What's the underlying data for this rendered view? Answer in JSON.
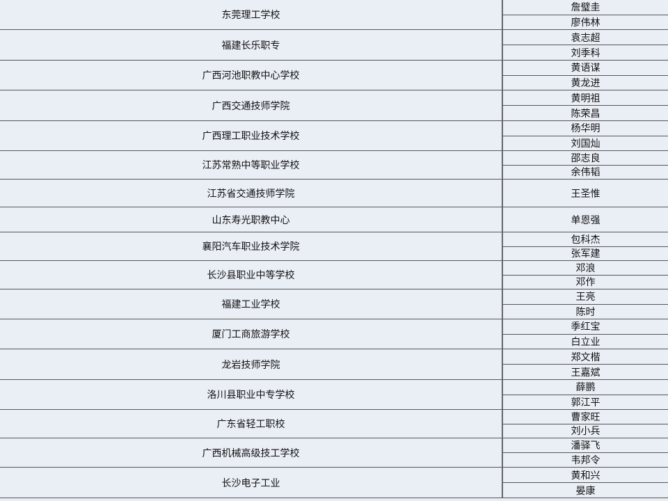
{
  "rows": [
    {
      "school": "东莞理工学校",
      "names": [
        "詹璧圭",
        "廖伟林"
      ]
    },
    {
      "school": "福建长乐职专",
      "names": [
        "袁志超",
        "刘季科"
      ]
    },
    {
      "school": "广西河池职教中心学校",
      "names": [
        "黄语谋",
        "黄龙进"
      ]
    },
    {
      "school": "广西交通技师学院",
      "names": [
        "黄明祖",
        "陈荣昌"
      ]
    },
    {
      "school": "广西理工职业技术学校",
      "names": [
        "杨华明",
        "刘国灿"
      ]
    },
    {
      "school": "江苏常熟中等职业学校",
      "names": [
        "邵志良",
        "余伟韬"
      ]
    },
    {
      "school": "江苏省交通技师学院",
      "names": [
        "王圣惟"
      ]
    },
    {
      "school": "山东寿光职教中心",
      "names": [
        "单恩强"
      ]
    },
    {
      "school": "襄阳汽车职业技术学院",
      "names": [
        "包科杰",
        "张军建"
      ]
    },
    {
      "school": "长沙县职业中等学校",
      "names": [
        "邓浪",
        "邓作"
      ]
    },
    {
      "school": "福建工业学校",
      "names": [
        "王亮",
        "陈时"
      ]
    },
    {
      "school": "厦门工商旅游学校",
      "names": [
        "季红宝",
        "白立业"
      ]
    },
    {
      "school": "龙岩技师学院",
      "names": [
        "郑文楷",
        "王嘉斌"
      ]
    },
    {
      "school": "洛川县职业中专学校",
      "names": [
        "薛鹏",
        "郭江平"
      ]
    },
    {
      "school": "广东省轻工职校",
      "names": [
        "曹家旺",
        "刘小兵"
      ]
    },
    {
      "school": "广西机械高级技工学校",
      "names": [
        "潘驿飞",
        "韦邦令"
      ]
    },
    {
      "school": "长沙电子工业",
      "names": [
        "黄和兴",
        "晏康"
      ]
    }
  ]
}
